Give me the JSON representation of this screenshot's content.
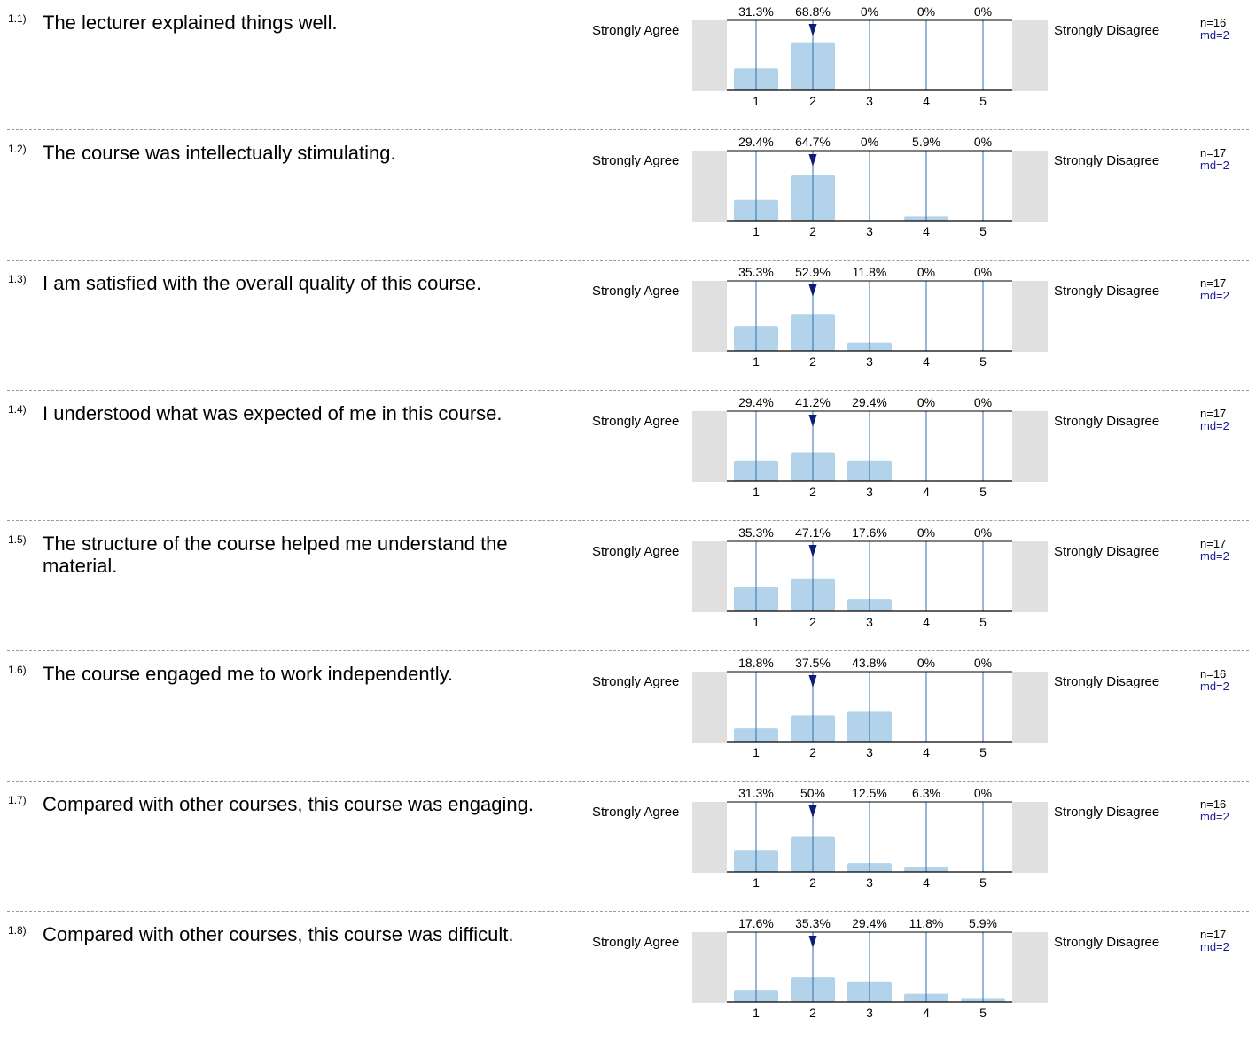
{
  "scale": {
    "left_label": "Strongly Agree",
    "right_label": "Strongly Disagree",
    "ticks": [
      "1",
      "2",
      "3",
      "4",
      "5"
    ]
  },
  "colors": {
    "bar": "#b3d3eb",
    "line": "#2e6eb4",
    "marker": "#0c1c7a",
    "box": "#e0e0e0"
  },
  "questions": [
    {
      "num": "1.1)",
      "text": "The lecturer explained things well.",
      "pct_labels": [
        "31.3%",
        "68.8%",
        "0%",
        "0%",
        "0%"
      ],
      "n": "n=16",
      "md": "md=2"
    },
    {
      "num": "1.2)",
      "text": "The course was intellectually stimulating.",
      "pct_labels": [
        "29.4%",
        "64.7%",
        "0%",
        "5.9%",
        "0%"
      ],
      "n": "n=17",
      "md": "md=2"
    },
    {
      "num": "1.3)",
      "text": "I am satisfied with the overall quality of this course.",
      "pct_labels": [
        "35.3%",
        "52.9%",
        "11.8%",
        "0%",
        "0%"
      ],
      "n": "n=17",
      "md": "md=2"
    },
    {
      "num": "1.4)",
      "text": "I understood what was expected of me in this course.",
      "pct_labels": [
        "29.4%",
        "41.2%",
        "29.4%",
        "0%",
        "0%"
      ],
      "n": "n=17",
      "md": "md=2"
    },
    {
      "num": "1.5)",
      "text": "The structure of the course helped me understand the material.",
      "pct_labels": [
        "35.3%",
        "47.1%",
        "17.6%",
        "0%",
        "0%"
      ],
      "n": "n=17",
      "md": "md=2"
    },
    {
      "num": "1.6)",
      "text": "The course engaged me to work independently.",
      "pct_labels": [
        "18.8%",
        "37.5%",
        "43.8%",
        "0%",
        "0%"
      ],
      "n": "n=16",
      "md": "md=2"
    },
    {
      "num": "1.7)",
      "text": "Compared with other courses, this course was engaging.",
      "pct_labels": [
        "31.3%",
        "50%",
        "12.5%",
        "6.3%",
        "0%"
      ],
      "n": "n=16",
      "md": "md=2"
    },
    {
      "num": "1.8)",
      "text": "Compared with other courses, this course was difficult.",
      "pct_labels": [
        "17.6%",
        "35.3%",
        "29.4%",
        "11.8%",
        "5.9%"
      ],
      "n": "n=17",
      "md": "md=2"
    }
  ],
  "chart_data": {
    "type": "bar",
    "categories": [
      "1",
      "2",
      "3",
      "4",
      "5"
    ],
    "ylim": [
      0,
      100
    ],
    "series": [
      {
        "values": [
          31.3,
          68.8,
          0,
          0,
          0
        ],
        "median": 2
      },
      {
        "values": [
          29.4,
          64.7,
          0,
          5.9,
          0
        ],
        "median": 2
      },
      {
        "values": [
          35.3,
          52.9,
          11.8,
          0,
          0
        ],
        "median": 2
      },
      {
        "values": [
          29.4,
          41.2,
          29.4,
          0,
          0
        ],
        "median": 2
      },
      {
        "values": [
          35.3,
          47.1,
          17.6,
          0,
          0
        ],
        "median": 2
      },
      {
        "values": [
          18.8,
          37.5,
          43.8,
          0,
          0
        ],
        "median": 2
      },
      {
        "values": [
          31.3,
          50,
          12.5,
          6.3,
          0
        ],
        "median": 2
      },
      {
        "values": [
          17.6,
          35.3,
          29.4,
          11.8,
          5.9
        ],
        "median": 2
      }
    ]
  }
}
